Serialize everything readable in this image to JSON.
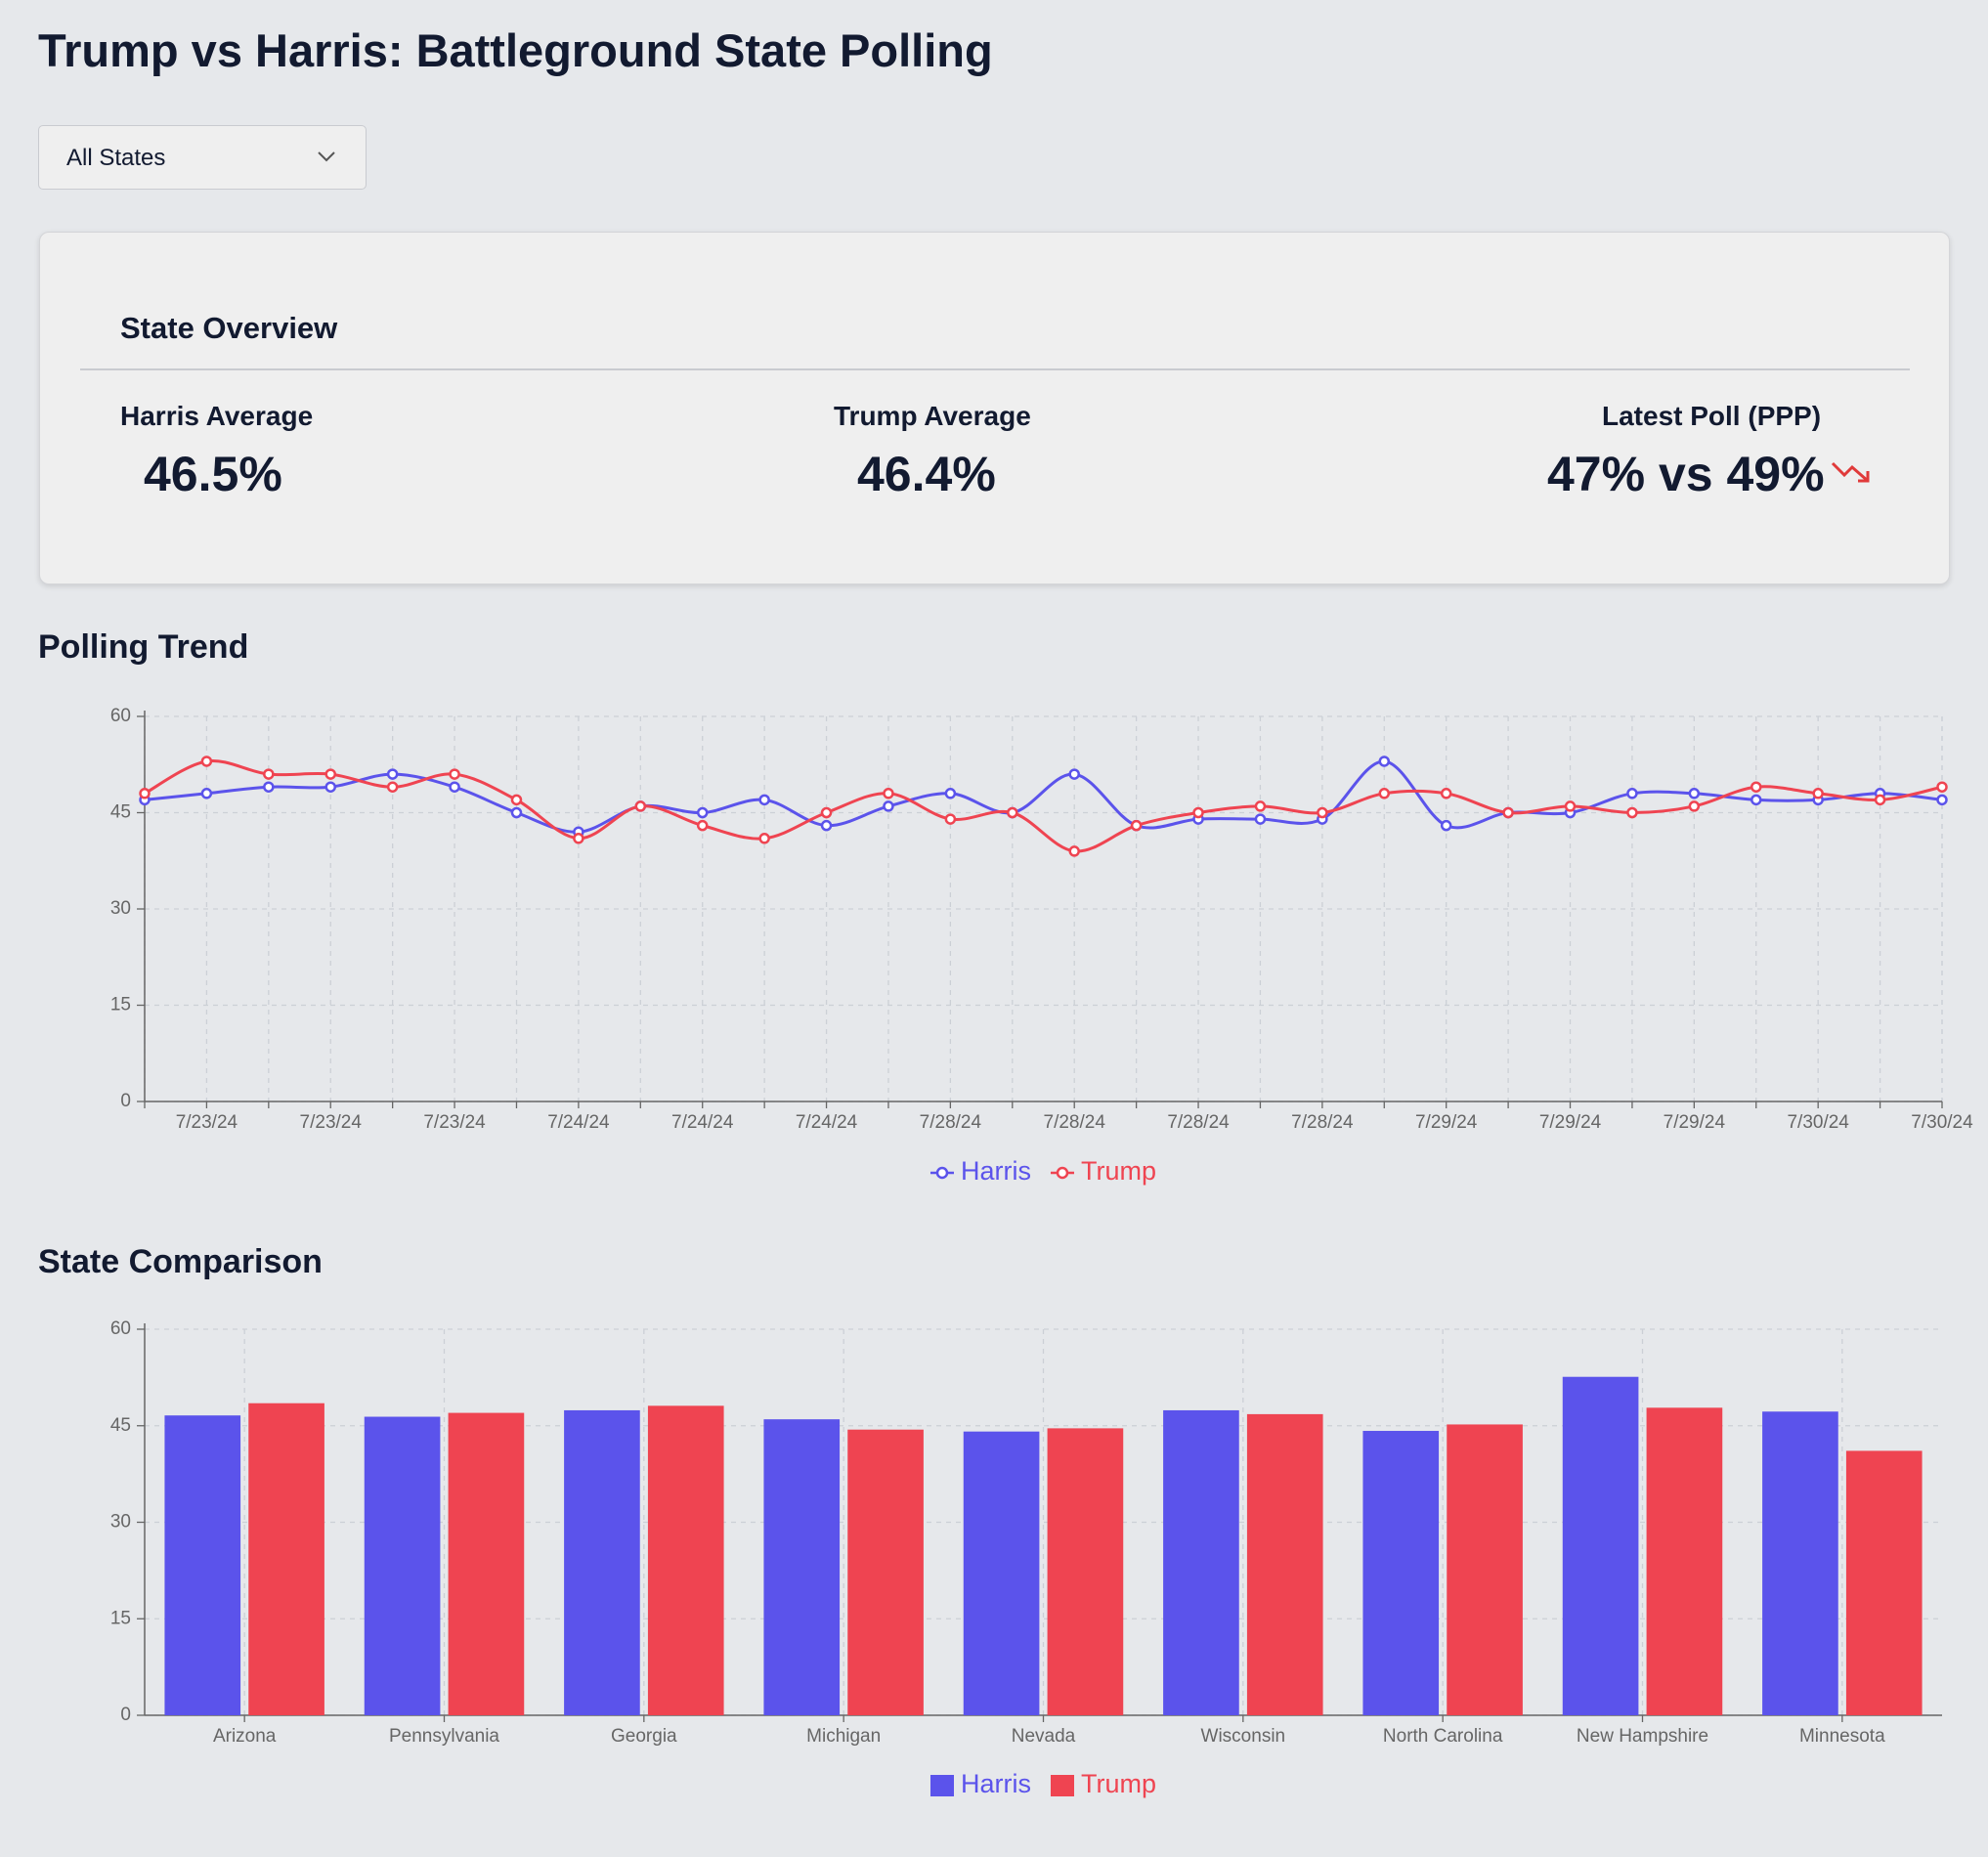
{
  "header": {
    "title": "Trump vs Harris: Battleground State Polling"
  },
  "filter": {
    "label": "All States"
  },
  "overview": {
    "title": "State Overview",
    "stats": [
      {
        "label": "Harris Average",
        "value": "46.5%"
      },
      {
        "label": "Trump Average",
        "value": "46.4%"
      },
      {
        "label": "Latest Poll (PPP)",
        "value": "47% vs 49%"
      }
    ]
  },
  "chart_data": [
    {
      "type": "line",
      "title": "Polling Trend",
      "categories": [
        null,
        "7/23/24",
        null,
        "7/23/24",
        null,
        "7/23/24",
        null,
        "7/24/24",
        null,
        "7/24/24",
        null,
        "7/24/24",
        null,
        "7/28/24",
        null,
        "7/28/24",
        null,
        "7/28/24",
        null,
        "7/28/24",
        null,
        "7/29/24",
        null,
        "7/29/24",
        null,
        "7/29/24",
        null,
        "7/30/24",
        null,
        "7/30/24"
      ],
      "series": [
        {
          "name": "Harris",
          "color": "#5b53eb",
          "values": [
            47,
            48,
            49,
            49,
            51,
            49,
            45,
            42,
            46,
            45,
            47,
            43,
            46,
            48,
            45,
            51,
            43,
            44,
            44,
            44,
            53,
            43,
            45,
            45,
            48,
            48,
            47,
            47,
            48,
            47
          ]
        },
        {
          "name": "Trump",
          "color": "#ef4451",
          "values": [
            48,
            53,
            51,
            51,
            49,
            51,
            47,
            41,
            46,
            43,
            41,
            45,
            48,
            44,
            45,
            39,
            43,
            45,
            46,
            45,
            48,
            48,
            45,
            46,
            45,
            46,
            49,
            48,
            47,
            49
          ]
        }
      ],
      "ylim": [
        0,
        60
      ],
      "yticks": [
        0,
        15,
        30,
        45,
        60
      ],
      "grid": true,
      "legend": "bottom"
    },
    {
      "type": "bar",
      "title": "State Comparison",
      "categories": [
        "Arizona",
        "Pennsylvania",
        "Georgia",
        "Michigan",
        "Nevada",
        "Wisconsin",
        "North Carolina",
        "New Hampshire",
        "Minnesota"
      ],
      "series": [
        {
          "name": "Harris",
          "color": "#5b53eb",
          "values": [
            46.6,
            46.4,
            47.4,
            46.0,
            44.1,
            47.4,
            44.2,
            52.6,
            47.2
          ]
        },
        {
          "name": "Trump",
          "color": "#ef4451",
          "values": [
            48.5,
            47.0,
            48.1,
            44.4,
            44.6,
            46.8,
            45.2,
            47.8,
            41.1
          ]
        }
      ],
      "ylim": [
        0,
        60
      ],
      "yticks": [
        0,
        15,
        30,
        45,
        60
      ],
      "grid": true,
      "legend": "bottom"
    }
  ]
}
